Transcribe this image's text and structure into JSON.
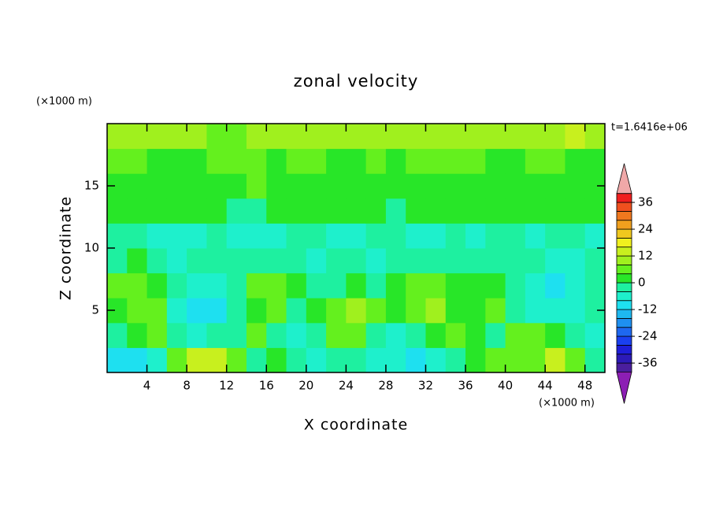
{
  "chart_data": {
    "type": "contour",
    "title": "zonal velocity",
    "xlabel": "X coordinate",
    "ylabel": "Z coordinate",
    "x_unit": "(×1000 m)",
    "y_unit": "(×1000 m)",
    "time_label": "t=1.6416e+06",
    "xlim": [
      0,
      50
    ],
    "ylim": [
      0,
      20
    ],
    "xticks": [
      4,
      8,
      12,
      16,
      20,
      24,
      28,
      32,
      36,
      40,
      44,
      48
    ],
    "yticks": [
      5,
      10,
      15
    ],
    "x": [
      1,
      3,
      5,
      7,
      9,
      11,
      13,
      15,
      17,
      19,
      21,
      23,
      25,
      27,
      29,
      31,
      33,
      35,
      37,
      39,
      41,
      43,
      45,
      47,
      49
    ],
    "z": [
      1,
      3,
      5,
      7,
      9,
      11,
      13,
      15,
      17,
      19
    ],
    "values": [
      [
        -12,
        -10,
        -6,
        4,
        12,
        14,
        6,
        -2,
        2,
        -4,
        -6,
        -2,
        -4,
        -6,
        -8,
        -10,
        -8,
        -4,
        2,
        4,
        4,
        6,
        12,
        6,
        -2
      ],
      [
        -4,
        0,
        4,
        -2,
        -6,
        -4,
        -2,
        4,
        -4,
        -8,
        -4,
        4,
        6,
        -2,
        -6,
        -4,
        0,
        4,
        2,
        -2,
        6,
        4,
        2,
        -2,
        -6
      ],
      [
        2,
        6,
        4,
        -6,
        -10,
        -10,
        -4,
        2,
        6,
        -2,
        2,
        6,
        8,
        4,
        2,
        6,
        8,
        0,
        2,
        4,
        -2,
        -6,
        -8,
        -6,
        -2
      ],
      [
        4,
        6,
        2,
        -4,
        -8,
        -8,
        -2,
        6,
        6,
        2,
        -2,
        -2,
        0,
        -2,
        2,
        6,
        6,
        2,
        0,
        2,
        -2,
        -6,
        -10,
        -8,
        -4
      ],
      [
        -2,
        2,
        -4,
        -6,
        -4,
        -4,
        -4,
        -2,
        -4,
        -4,
        -6,
        -4,
        -4,
        -6,
        -4,
        -2,
        -2,
        -4,
        -2,
        -2,
        -4,
        -4,
        -6,
        -6,
        -4
      ],
      [
        -4,
        -4,
        -6,
        -6,
        -6,
        -4,
        -6,
        -6,
        -6,
        -4,
        -4,
        -6,
        -6,
        -4,
        -4,
        -6,
        -6,
        -4,
        -6,
        -4,
        -4,
        -6,
        -4,
        -4,
        -6
      ],
      [
        2,
        2,
        2,
        2,
        2,
        2,
        -2,
        -2,
        2,
        2,
        2,
        2,
        2,
        2,
        -2,
        2,
        2,
        2,
        2,
        2,
        2,
        2,
        2,
        2,
        2
      ],
      [
        2,
        2,
        2,
        2,
        2,
        2,
        2,
        4,
        2,
        2,
        2,
        2,
        2,
        2,
        2,
        2,
        2,
        2,
        2,
        2,
        2,
        2,
        2,
        2,
        2
      ],
      [
        6,
        6,
        2,
        2,
        2,
        6,
        6,
        6,
        2,
        6,
        6,
        2,
        2,
        6,
        2,
        6,
        6,
        6,
        6,
        2,
        2,
        6,
        6,
        2,
        2
      ],
      [
        10,
        10,
        10,
        10,
        10,
        6,
        6,
        10,
        10,
        10,
        10,
        10,
        10,
        10,
        10,
        10,
        10,
        10,
        10,
        10,
        10,
        10,
        10,
        14,
        10
      ]
    ],
    "levels": [
      -40,
      -36,
      -32,
      -28,
      -24,
      -20,
      -16,
      -12,
      -8,
      -4,
      0,
      4,
      8,
      12,
      16,
      20,
      24,
      28,
      32,
      36,
      40
    ],
    "colors": [
      "#4a1e9e",
      "#2c1ab8",
      "#1e1ed8",
      "#1a40f0",
      "#1e68f0",
      "#1e90f0",
      "#1eb8f0",
      "#1ee0f0",
      "#1ef0cc",
      "#1ef0a0",
      "#28e628",
      "#64f01e",
      "#a0f01e",
      "#c8f01e",
      "#f0f01e",
      "#f0c81e",
      "#f0a01e",
      "#f0781e",
      "#f0501e",
      "#f01e1e"
    ],
    "extend_colors": [
      "#8c1eb4",
      "#f0a8a8"
    ],
    "clim": [
      -40,
      40
    ],
    "colorbar_ticks": [
      -36,
      -24,
      -12,
      0,
      12,
      24,
      36
    ]
  }
}
